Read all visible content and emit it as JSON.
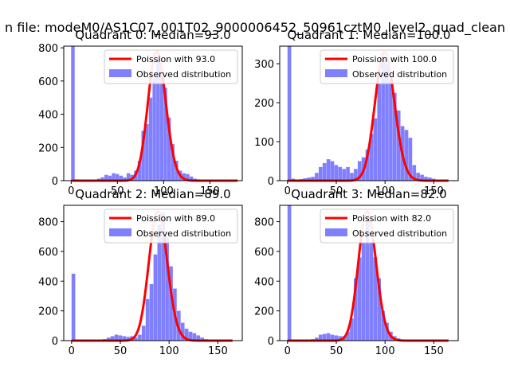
{
  "suptitle": "n file: modeM0/AS1C07_001T02_9000006452_50961cztM0_level2_quad_clean",
  "colors": {
    "observed": "#8080ff",
    "poisson": "#ff0000",
    "poisson_peak": "#ff8080"
  },
  "chart_data": [
    {
      "type": "bar",
      "title": "Quadrant 0: Median=93.0",
      "xlim": [
        -8,
        185
      ],
      "ylim": [
        0,
        810
      ],
      "xticks": [
        0,
        50,
        100,
        150
      ],
      "yticks": [
        0,
        200,
        400,
        600,
        800
      ],
      "legend_position": "top-right",
      "legend": [
        "Poission with 93.0",
        "Observed distribution"
      ],
      "median": 93.0,
      "bin_width": 3.8,
      "observed": {
        "name": "Observed distribution",
        "bins": [
          [
            0,
            810
          ],
          [
            4,
            8
          ],
          [
            8,
            4
          ],
          [
            12,
            5
          ],
          [
            16,
            3
          ],
          [
            20,
            4
          ],
          [
            24,
            6
          ],
          [
            28,
            12
          ],
          [
            32,
            20
          ],
          [
            36,
            35
          ],
          [
            40,
            30
          ],
          [
            44,
            45
          ],
          [
            48,
            40
          ],
          [
            52,
            30
          ],
          [
            56,
            20
          ],
          [
            60,
            45
          ],
          [
            64,
            35
          ],
          [
            68,
            60
          ],
          [
            72,
            120
          ],
          [
            76,
            300
          ],
          [
            80,
            340
          ],
          [
            84,
            500
          ],
          [
            88,
            620
          ],
          [
            92,
            740
          ],
          [
            96,
            680
          ],
          [
            100,
            560
          ],
          [
            104,
            380
          ],
          [
            108,
            220
          ],
          [
            112,
            120
          ],
          [
            116,
            60
          ],
          [
            120,
            45
          ],
          [
            124,
            40
          ],
          [
            128,
            25
          ],
          [
            132,
            12
          ],
          [
            136,
            8
          ],
          [
            140,
            5
          ],
          [
            144,
            4
          ],
          [
            148,
            3
          ],
          [
            152,
            2
          ],
          [
            156,
            2
          ]
        ]
      },
      "poisson": {
        "name": "Poission with 93.0",
        "lambda": 93.0,
        "peak": 780,
        "x_range": [
          0,
          180
        ]
      }
    },
    {
      "type": "bar",
      "title": "Quadrant 1: Median=100.0",
      "xlim": [
        -8,
        175
      ],
      "ylim": [
        0,
        345
      ],
      "xticks": [
        0,
        50,
        100,
        150
      ],
      "yticks": [
        0,
        100,
        200,
        300
      ],
      "legend_position": "top-right",
      "legend": [
        "Poission with 100.0",
        "Observed distribution"
      ],
      "median": 100.0,
      "bin_width": 3.8,
      "observed": {
        "name": "Observed distribution",
        "bins": [
          [
            0,
            345
          ],
          [
            4,
            5
          ],
          [
            8,
            3
          ],
          [
            12,
            4
          ],
          [
            16,
            6
          ],
          [
            20,
            8
          ],
          [
            24,
            10
          ],
          [
            28,
            20
          ],
          [
            32,
            35
          ],
          [
            36,
            45
          ],
          [
            40,
            55
          ],
          [
            44,
            50
          ],
          [
            48,
            40
          ],
          [
            52,
            35
          ],
          [
            56,
            30
          ],
          [
            60,
            35
          ],
          [
            64,
            20
          ],
          [
            68,
            30
          ],
          [
            72,
            50
          ],
          [
            76,
            60
          ],
          [
            80,
            80
          ],
          [
            84,
            120
          ],
          [
            88,
            160
          ],
          [
            92,
            250
          ],
          [
            96,
            320
          ],
          [
            100,
            300
          ],
          [
            104,
            260
          ],
          [
            108,
            225
          ],
          [
            112,
            180
          ],
          [
            116,
            140
          ],
          [
            120,
            130
          ],
          [
            124,
            110
          ],
          [
            128,
            40
          ],
          [
            132,
            20
          ],
          [
            136,
            15
          ],
          [
            140,
            10
          ],
          [
            144,
            8
          ],
          [
            148,
            5
          ],
          [
            152,
            3
          ]
        ]
      },
      "poisson": {
        "name": "Poission with 100.0",
        "lambda": 100.0,
        "peak": 330,
        "x_range": [
          0,
          165
        ]
      }
    },
    {
      "type": "bar",
      "title": "Quadrant 2: Median=89.0",
      "xlim": [
        -8,
        175
      ],
      "ylim": [
        0,
        910
      ],
      "xticks": [
        0,
        50,
        100,
        150
      ],
      "yticks": [
        0,
        200,
        400,
        600,
        800
      ],
      "legend_position": "top-right",
      "legend": [
        "Poission with 89.0",
        "Observed distribution"
      ],
      "median": 89.0,
      "bin_width": 3.8,
      "observed": {
        "name": "Observed distribution",
        "bins": [
          [
            0,
            450
          ],
          [
            4,
            2
          ],
          [
            8,
            2
          ],
          [
            12,
            1
          ],
          [
            16,
            2
          ],
          [
            20,
            2
          ],
          [
            24,
            3
          ],
          [
            28,
            5
          ],
          [
            32,
            10
          ],
          [
            36,
            20
          ],
          [
            40,
            30
          ],
          [
            44,
            40
          ],
          [
            48,
            35
          ],
          [
            52,
            30
          ],
          [
            56,
            25
          ],
          [
            60,
            30
          ],
          [
            64,
            20
          ],
          [
            68,
            40
          ],
          [
            72,
            100
          ],
          [
            76,
            280
          ],
          [
            80,
            380
          ],
          [
            84,
            580
          ],
          [
            88,
            780
          ],
          [
            92,
            860
          ],
          [
            96,
            700
          ],
          [
            100,
            500
          ],
          [
            104,
            350
          ],
          [
            108,
            200
          ],
          [
            112,
            120
          ],
          [
            116,
            80
          ],
          [
            120,
            60
          ],
          [
            124,
            50
          ],
          [
            128,
            35
          ],
          [
            132,
            20
          ],
          [
            136,
            10
          ],
          [
            140,
            6
          ],
          [
            144,
            4
          ],
          [
            148,
            2
          ]
        ]
      },
      "poisson": {
        "name": "Poission with 89.0",
        "lambda": 89.0,
        "peak": 870,
        "x_range": [
          0,
          165
        ]
      }
    },
    {
      "type": "bar",
      "title": "Quadrant 3: Median=82.0",
      "xlim": [
        -8,
        175
      ],
      "ylim": [
        0,
        910
      ],
      "xticks": [
        0,
        50,
        100,
        150
      ],
      "yticks": [
        0,
        200,
        400,
        600,
        800
      ],
      "legend_position": "top-right",
      "legend": [
        "Poission with 82.0",
        "Observed distribution"
      ],
      "median": 82.0,
      "bin_width": 3.8,
      "observed": {
        "name": "Observed distribution",
        "bins": [
          [
            0,
            910
          ],
          [
            4,
            3
          ],
          [
            8,
            2
          ],
          [
            12,
            2
          ],
          [
            16,
            3
          ],
          [
            20,
            5
          ],
          [
            24,
            10
          ],
          [
            28,
            20
          ],
          [
            32,
            40
          ],
          [
            36,
            45
          ],
          [
            40,
            50
          ],
          [
            44,
            40
          ],
          [
            48,
            35
          ],
          [
            52,
            30
          ],
          [
            56,
            30
          ],
          [
            60,
            60
          ],
          [
            64,
            150
          ],
          [
            68,
            420
          ],
          [
            72,
            560
          ],
          [
            76,
            660
          ],
          [
            80,
            840
          ],
          [
            84,
            660
          ],
          [
            88,
            560
          ],
          [
            92,
            420
          ],
          [
            96,
            200
          ],
          [
            100,
            120
          ],
          [
            104,
            60
          ],
          [
            108,
            30
          ],
          [
            112,
            15
          ],
          [
            116,
            8
          ],
          [
            120,
            5
          ],
          [
            124,
            3
          ],
          [
            128,
            2
          ]
        ]
      },
      "poisson": {
        "name": "Poission with 82.0",
        "lambda": 82.0,
        "peak": 870,
        "x_range": [
          0,
          165
        ]
      }
    }
  ]
}
